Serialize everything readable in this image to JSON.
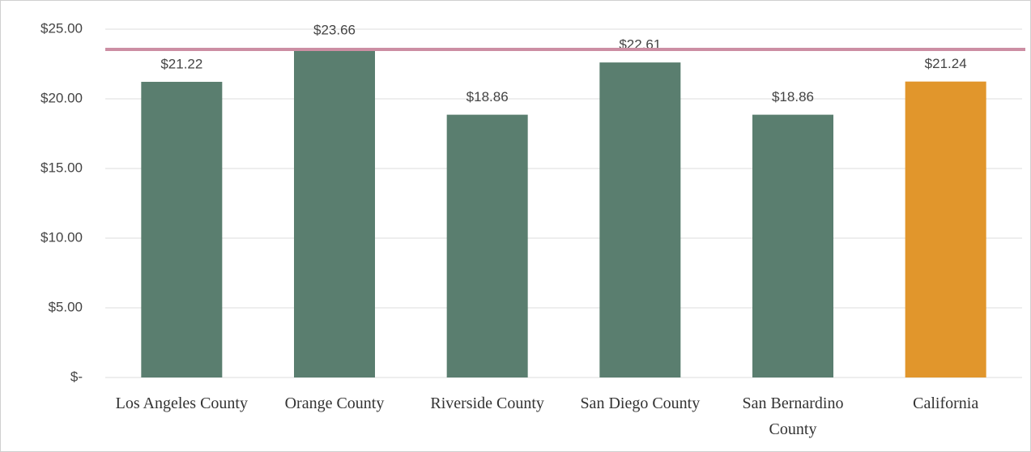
{
  "chart_data": {
    "type": "bar",
    "categories": [
      "Los Angeles County",
      "Orange County",
      "Riverside County",
      "San Diego County",
      "San Bernardino County",
      "California"
    ],
    "values": [
      21.22,
      23.66,
      18.86,
      22.61,
      18.86,
      21.24
    ],
    "value_labels": [
      "$21.22",
      "$23.66",
      "$18.86",
      "$22.61",
      "$18.86",
      "$21.24"
    ],
    "colors": [
      "#5a7e6f",
      "#5a7e6f",
      "#5a7e6f",
      "#5a7e6f",
      "#5a7e6f",
      "#e1962c"
    ],
    "reference_line": 23.55,
    "reference_color": "#cc8ea3",
    "ylim": [
      0,
      25
    ],
    "yticks": [
      {
        "value": 0,
        "label": "$-"
      },
      {
        "value": 5,
        "label": "$5.00"
      },
      {
        "value": 10,
        "label": "$10.00"
      },
      {
        "value": 15,
        "label": "$15.00"
      },
      {
        "value": 20,
        "label": "$20.00"
      },
      {
        "value": 25,
        "label": "$25.00"
      }
    ],
    "grid": true
  }
}
